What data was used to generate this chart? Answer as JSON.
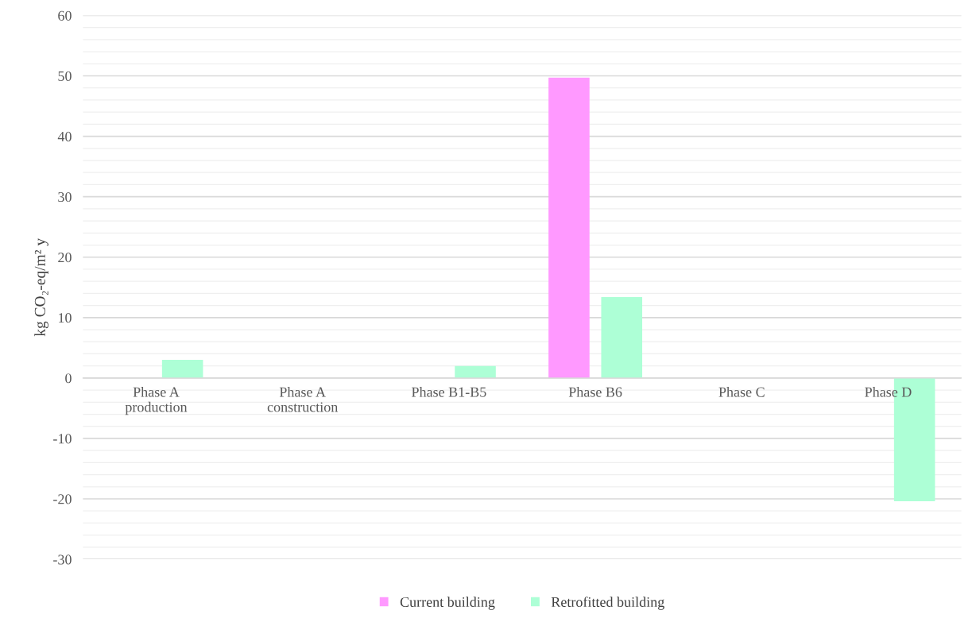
{
  "chart_data": {
    "type": "bar",
    "ylabel": "kg CO₂-eq/m² y",
    "categories": [
      "Phase A\nproduction",
      "Phase A\nconstruction",
      "Phase B1-B5",
      "Phase B6",
      "Phase C",
      "Phase D"
    ],
    "series": [
      {
        "name": "Current building",
        "color": "#ff99ff",
        "values": [
          0,
          0,
          0,
          49.7,
          0,
          0
        ]
      },
      {
        "name": "Retrofitted building",
        "color": "#adffd6",
        "values": [
          3.0,
          0,
          2.0,
          13.4,
          0,
          -20.4
        ]
      }
    ],
    "ylim": [
      -30,
      60
    ],
    "yticks": [
      -30,
      {
        "value": -28,
        "label": null
      },
      {
        "value": -26,
        "label": null
      },
      {
        "value": -24,
        "label": null
      },
      {
        "value": -22,
        "label": null
      },
      -20,
      {
        "value": -18,
        "label": null
      },
      {
        "value": -16,
        "label": null
      },
      {
        "value": -14,
        "label": null
      },
      {
        "value": -12,
        "label": null
      },
      -10,
      {
        "value": -8,
        "label": null
      },
      {
        "value": -6,
        "label": null
      },
      {
        "value": -4,
        "label": null
      },
      {
        "value": -2,
        "label": null
      },
      0,
      {
        "value": 2,
        "label": null
      },
      {
        "value": 4,
        "label": null
      },
      {
        "value": 6,
        "label": null
      },
      {
        "value": 8,
        "label": null
      },
      10,
      {
        "value": 12,
        "label": null
      },
      {
        "value": 14,
        "label": null
      },
      {
        "value": 16,
        "label": null
      },
      {
        "value": 18,
        "label": null
      },
      20,
      {
        "value": 22,
        "label": null
      },
      {
        "value": 24,
        "label": null
      },
      {
        "value": 26,
        "label": null
      },
      {
        "value": 28,
        "label": null
      },
      30,
      {
        "value": 32,
        "label": null
      },
      {
        "value": 34,
        "label": null
      },
      {
        "value": 36,
        "label": null
      },
      {
        "value": 38,
        "label": null
      },
      40,
      {
        "value": 42,
        "label": null
      },
      {
        "value": 44,
        "label": null
      },
      {
        "value": 46,
        "label": null
      },
      {
        "value": 48,
        "label": null
      },
      50,
      {
        "value": 52,
        "label": null
      },
      {
        "value": 54,
        "label": null
      },
      {
        "value": 56,
        "label": null
      },
      {
        "value": 58,
        "label": null
      },
      60
    ],
    "grid": "y",
    "legend": "bottom"
  }
}
